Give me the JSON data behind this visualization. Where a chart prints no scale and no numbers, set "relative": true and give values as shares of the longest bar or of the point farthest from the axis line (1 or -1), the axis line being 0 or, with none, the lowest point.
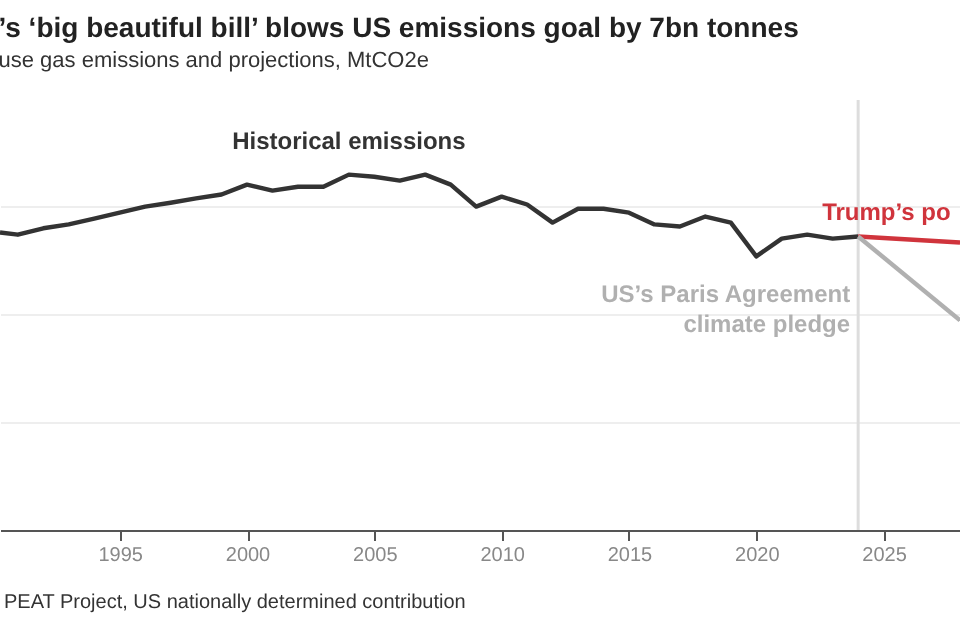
{
  "chart_data": {
    "type": "line",
    "title": "’s ‘big beautiful bill’ blows US emissions goal by 7bn tonnes",
    "subtitle": "use gas emissions and projections, MtCO2e",
    "relative": true,
    "xlim": [
      1990.3,
      2028
    ],
    "xticks": [
      1995,
      2000,
      2005,
      2010,
      2015,
      2020,
      2025
    ],
    "grid": "y",
    "series": [
      {
        "name": "Historical emissions",
        "color": "#333333",
        "x": [
          1990.3,
          1991,
          1992,
          1993,
          1994,
          1995,
          1996,
          1997,
          1998,
          1999,
          2000,
          2001,
          2002,
          2003,
          2004,
          2005,
          2006,
          2007,
          2008,
          2009,
          2010,
          2011,
          2012,
          2013,
          2014,
          2015,
          2016,
          2017,
          2018,
          2019,
          2020,
          2021,
          2022,
          2023,
          2024
        ],
        "values": [
          0.837,
          0.831,
          0.849,
          0.86,
          0.876,
          0.893,
          0.91,
          0.921,
          0.933,
          0.944,
          0.972,
          0.955,
          0.966,
          0.966,
          1.0,
          0.994,
          0.983,
          1.0,
          0.972,
          0.91,
          0.938,
          0.916,
          0.865,
          0.904,
          0.904,
          0.893,
          0.86,
          0.854,
          0.882,
          0.865,
          0.77,
          0.82,
          0.831,
          0.82,
          0.826
        ]
      },
      {
        "name": "Trump’s po",
        "color": "#d0343c",
        "x": [
          2024,
          2028
        ],
        "values": [
          0.826,
          0.809
        ]
      },
      {
        "name": "US’s Paris Agreement\nclimate pledge",
        "color": "#b0b0b0",
        "x": [
          2024,
          2028
        ],
        "values": [
          0.826,
          0.59
        ]
      }
    ],
    "ref_lines": [
      {
        "axis": "x",
        "value": 2024,
        "color": "#dddddd"
      }
    ],
    "annotations": [
      "PEAT Project, US nationally determined contribution"
    ]
  }
}
